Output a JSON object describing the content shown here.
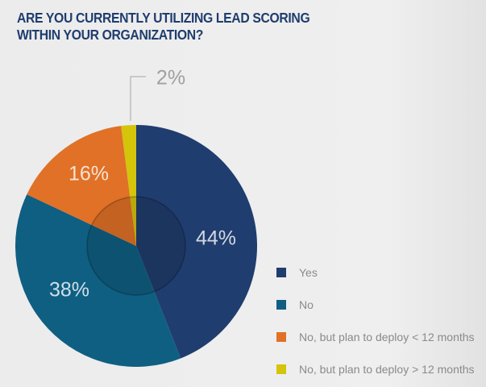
{
  "chart_data": {
    "type": "pie",
    "title": "ARE YOU CURRENTLY UTILIZING LEAD SCORING WITHIN YOUR ORGANIZATION?",
    "start_angle": "12 o'clock, clockwise",
    "legend_position": "right",
    "slices": [
      {
        "name": "Yes",
        "value": 44,
        "label": "44%",
        "color": "#1f3d6e"
      },
      {
        "name": "No",
        "value": 38,
        "label": "38%",
        "color": "#0f5f82"
      },
      {
        "name": "No, but plan to deploy < 12 months",
        "value": 16,
        "label": "16%",
        "color": "#e07126"
      },
      {
        "name": "No, but plan to deploy > 12 months",
        "value": 2,
        "label": "2%",
        "color": "#d4c40a"
      }
    ]
  }
}
